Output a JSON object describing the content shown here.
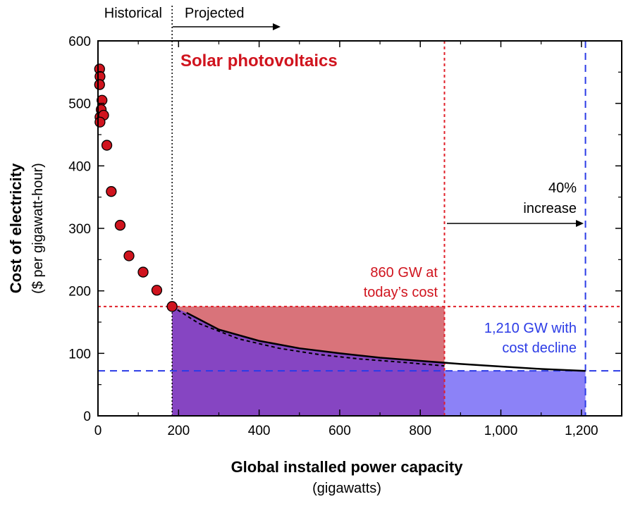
{
  "chart_data": {
    "type": "scatter",
    "title": "Solar photovoltaics",
    "xlabel": "Global installed power capacity",
    "xlabel_sub": "(gigawatts)",
    "ylabel": "Cost of electricity",
    "ylabel_sub": "($ per gigawatt-hour)",
    "xlim": [
      0,
      1300
    ],
    "ylim": [
      0,
      600
    ],
    "x_ticks": [
      {
        "value": 0,
        "label": "0"
      },
      {
        "value": 200,
        "label": "200"
      },
      {
        "value": 400,
        "label": "400"
      },
      {
        "value": 600,
        "label": "600"
      },
      {
        "value": 800,
        "label": "800"
      },
      {
        "value": 1000,
        "label": "1,000"
      },
      {
        "value": 1200,
        "label": "1,200"
      }
    ],
    "y_ticks": [
      {
        "value": 0,
        "label": "0"
      },
      {
        "value": 100,
        "label": "100"
      },
      {
        "value": 200,
        "label": "200"
      },
      {
        "value": 300,
        "label": "300"
      },
      {
        "value": 400,
        "label": "400"
      },
      {
        "value": 500,
        "label": "500"
      },
      {
        "value": 600,
        "label": "600"
      }
    ],
    "historical_points": [
      {
        "x": 4,
        "y": 555
      },
      {
        "x": 5,
        "y": 543
      },
      {
        "x": 4,
        "y": 530
      },
      {
        "x": 10,
        "y": 505
      },
      {
        "x": 8,
        "y": 490
      },
      {
        "x": 5,
        "y": 478
      },
      {
        "x": 14,
        "y": 481
      },
      {
        "x": 5,
        "y": 470
      },
      {
        "x": 22,
        "y": 433
      },
      {
        "x": 33,
        "y": 359
      },
      {
        "x": 55,
        "y": 305
      },
      {
        "x": 77,
        "y": 256
      },
      {
        "x": 112,
        "y": 230
      },
      {
        "x": 146,
        "y": 201
      },
      {
        "x": 184,
        "y": 175
      }
    ],
    "projected_solid": [
      {
        "x": 220,
        "y": 165
      },
      {
        "x": 300,
        "y": 138
      },
      {
        "x": 400,
        "y": 120
      },
      {
        "x": 500,
        "y": 108
      },
      {
        "x": 600,
        "y": 100
      },
      {
        "x": 700,
        "y": 93
      },
      {
        "x": 800,
        "y": 88
      },
      {
        "x": 900,
        "y": 83
      },
      {
        "x": 1000,
        "y": 79
      },
      {
        "x": 1100,
        "y": 75
      },
      {
        "x": 1210,
        "y": 72
      }
    ],
    "projected_dashed": [
      {
        "x": 184,
        "y": 175
      },
      {
        "x": 250,
        "y": 148
      },
      {
        "x": 350,
        "y": 123
      },
      {
        "x": 450,
        "y": 108
      },
      {
        "x": 550,
        "y": 98
      },
      {
        "x": 650,
        "y": 91
      },
      {
        "x": 750,
        "y": 86
      },
      {
        "x": 860,
        "y": 80
      }
    ],
    "divider_x": 184,
    "reference_lines": {
      "today_cost_y": 175,
      "declined_cost_y": 72,
      "cap_today_x": 860,
      "cap_decline_x": 1210
    },
    "annotations": {
      "historical": "Historical",
      "projected": "Projected",
      "today_line1": "860 GW at",
      "today_line2": "today’s cost",
      "decline_line1": "1,210 GW with",
      "decline_line2": "cost decline",
      "increase_line1": "40%",
      "increase_line2": "increase"
    },
    "grid": false,
    "colors": {
      "points": "#d0141e",
      "title": "#d0141e",
      "red_line": "#e0202a",
      "blue_line": "#2b3be6",
      "red_area": "#d9737a",
      "purple_area": "#8645c2",
      "blue_area": "#8c82f7",
      "curve": "#000000"
    }
  }
}
